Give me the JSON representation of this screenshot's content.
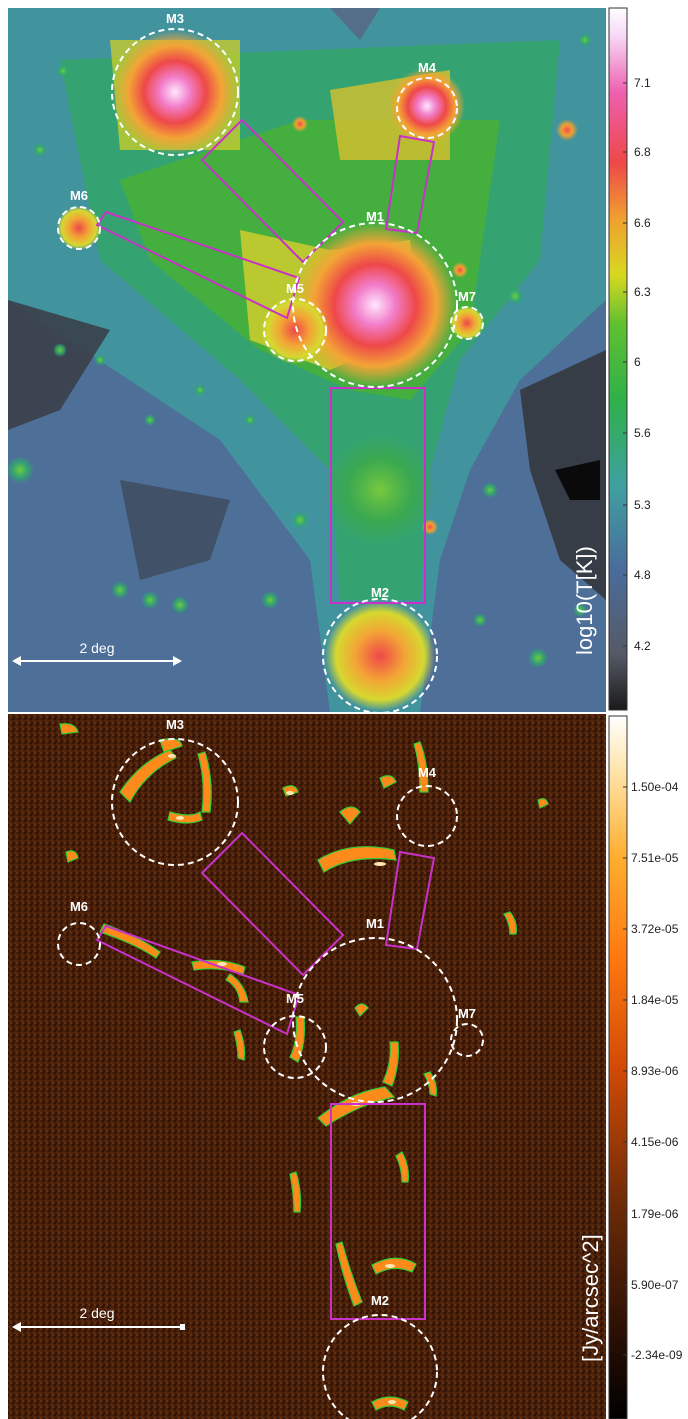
{
  "colors": {
    "region_outline": "#ffffff",
    "box_outline": "#c832c8",
    "temp_low": "#2a2a2a",
    "temp_mid": "#3aa838",
    "temp_high": "#f4b6f4",
    "flux_bg": "#4a1f0a",
    "flux_peak": "#fff3c8",
    "contour": "#33cc33"
  },
  "top_panel": {
    "colorbar_label": "log10(T[K])",
    "colorbar_ticks": [
      "7.1",
      "6.8",
      "6.6",
      "6.3",
      "6",
      "5.6",
      "5.3",
      "4.8",
      "4.2"
    ],
    "scale_bar_label": "2 deg",
    "region_labels": [
      "M1",
      "M2",
      "M3",
      "M4",
      "M5",
      "M6",
      "M7"
    ]
  },
  "bottom_panel": {
    "colorbar_label": "[Jy/arcsec^2]",
    "colorbar_ticks": [
      "1.50e-04",
      "7.51e-05",
      "3.72e-05",
      "1.84e-05",
      "8.93e-06",
      "4.15e-06",
      "1.79e-06",
      "5.90e-07",
      "-2.34e-09"
    ],
    "scale_bar_label": "2 deg",
    "region_labels": [
      "M1",
      "M2",
      "M3",
      "M4",
      "M5",
      "M6",
      "M7"
    ]
  }
}
